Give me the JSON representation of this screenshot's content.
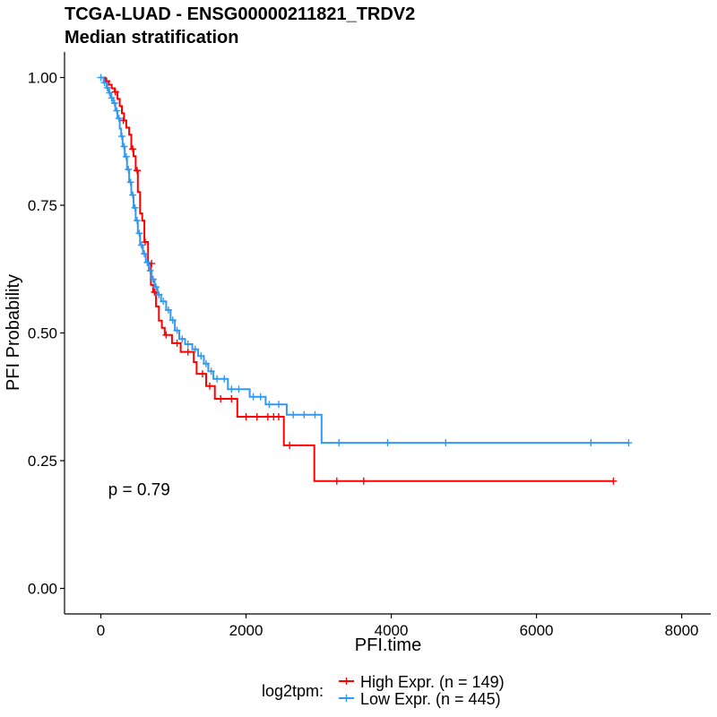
{
  "chart_data": {
    "type": "line",
    "title": "TCGA-LUAD - ENSG00000211821_TRDV2",
    "subtitle": "Median stratification",
    "xlabel": "PFI.time",
    "ylabel": "PFI Probability",
    "xlim": [
      -500,
      8400
    ],
    "ylim": [
      -0.05,
      1.05
    ],
    "x_ticks": [
      0,
      2000,
      4000,
      6000,
      8000
    ],
    "x_tick_labels": [
      "0",
      "2000",
      "4000",
      "6000",
      "8000"
    ],
    "y_ticks": [
      0,
      0.25,
      0.5,
      0.75,
      1.0
    ],
    "y_tick_labels": [
      "0.00",
      "0.25",
      "0.50",
      "0.75",
      "1.00"
    ],
    "grid": false,
    "annotation": {
      "text": "p = 0.79",
      "x": 100,
      "y": 0.195
    },
    "legend": {
      "placement": "bottom",
      "title": "log2tpm:",
      "entries": [
        "High Expr. (n = 149)",
        "Low Expr. (n = 445)"
      ]
    },
    "series": [
      {
        "name": "High Expr. (n = 149)",
        "color": "#ff0000",
        "steps": [
          [
            0,
            1.0
          ],
          [
            60,
            0.993
          ],
          [
            110,
            0.986
          ],
          [
            150,
            0.979
          ],
          [
            190,
            0.972
          ],
          [
            230,
            0.958
          ],
          [
            260,
            0.944
          ],
          [
            290,
            0.93
          ],
          [
            320,
            0.916
          ],
          [
            350,
            0.902
          ],
          [
            390,
            0.888
          ],
          [
            420,
            0.86
          ],
          [
            450,
            0.846
          ],
          [
            480,
            0.818
          ],
          [
            510,
            0.776
          ],
          [
            540,
            0.734
          ],
          [
            570,
            0.72
          ],
          [
            600,
            0.678
          ],
          [
            650,
            0.636
          ],
          [
            690,
            0.594
          ],
          [
            720,
            0.58
          ],
          [
            760,
            0.552
          ],
          [
            800,
            0.524
          ],
          [
            840,
            0.51
          ],
          [
            880,
            0.496
          ],
          [
            980,
            0.48
          ],
          [
            1100,
            0.463
          ],
          [
            1280,
            0.443
          ],
          [
            1320,
            0.42
          ],
          [
            1450,
            0.396
          ],
          [
            1570,
            0.371
          ],
          [
            1880,
            0.336
          ],
          [
            2520,
            0.28
          ],
          [
            2940,
            0.21
          ],
          [
            7060,
            0.21
          ]
        ],
        "censors": [
          [
            80,
            0.993
          ],
          [
            200,
            0.972
          ],
          [
            310,
            0.916
          ],
          [
            440,
            0.86
          ],
          [
            500,
            0.818
          ],
          [
            610,
            0.678
          ],
          [
            700,
            0.636
          ],
          [
            740,
            0.58
          ],
          [
            900,
            0.496
          ],
          [
            1050,
            0.48
          ],
          [
            1200,
            0.463
          ],
          [
            1400,
            0.42
          ],
          [
            1500,
            0.396
          ],
          [
            1650,
            0.371
          ],
          [
            1800,
            0.371
          ],
          [
            2000,
            0.336
          ],
          [
            2150,
            0.336
          ],
          [
            2300,
            0.336
          ],
          [
            2380,
            0.336
          ],
          [
            2450,
            0.336
          ],
          [
            2600,
            0.28
          ],
          [
            3250,
            0.21
          ],
          [
            3620,
            0.21
          ],
          [
            7060,
            0.21
          ]
        ]
      },
      {
        "name": "Low Expr. (n = 445)",
        "color": "#3399ee",
        "steps": [
          [
            0,
            1.0
          ],
          [
            40,
            0.99
          ],
          [
            80,
            0.98
          ],
          [
            110,
            0.97
          ],
          [
            140,
            0.96
          ],
          [
            170,
            0.95
          ],
          [
            200,
            0.935
          ],
          [
            230,
            0.92
          ],
          [
            260,
            0.9
          ],
          [
            280,
            0.885
          ],
          [
            300,
            0.865
          ],
          [
            330,
            0.845
          ],
          [
            360,
            0.82
          ],
          [
            390,
            0.795
          ],
          [
            420,
            0.77
          ],
          [
            450,
            0.745
          ],
          [
            480,
            0.72
          ],
          [
            510,
            0.695
          ],
          [
            540,
            0.672
          ],
          [
            580,
            0.655
          ],
          [
            620,
            0.638
          ],
          [
            660,
            0.622
          ],
          [
            700,
            0.605
          ],
          [
            740,
            0.59
          ],
          [
            780,
            0.575
          ],
          [
            830,
            0.562
          ],
          [
            900,
            0.545
          ],
          [
            960,
            0.525
          ],
          [
            1020,
            0.505
          ],
          [
            1080,
            0.488
          ],
          [
            1160,
            0.478
          ],
          [
            1260,
            0.468
          ],
          [
            1340,
            0.455
          ],
          [
            1420,
            0.44
          ],
          [
            1480,
            0.425
          ],
          [
            1550,
            0.41
          ],
          [
            1750,
            0.39
          ],
          [
            2050,
            0.375
          ],
          [
            2270,
            0.36
          ],
          [
            2560,
            0.34
          ],
          [
            3040,
            0.285
          ],
          [
            7270,
            0.285
          ]
        ],
        "censors": [
          [
            0,
            1.0
          ],
          [
            50,
            0.99
          ],
          [
            90,
            0.98
          ],
          [
            120,
            0.97
          ],
          [
            150,
            0.96
          ],
          [
            190,
            0.95
          ],
          [
            220,
            0.935
          ],
          [
            250,
            0.92
          ],
          [
            290,
            0.885
          ],
          [
            320,
            0.865
          ],
          [
            350,
            0.845
          ],
          [
            380,
            0.82
          ],
          [
            410,
            0.795
          ],
          [
            440,
            0.77
          ],
          [
            470,
            0.745
          ],
          [
            500,
            0.72
          ],
          [
            530,
            0.695
          ],
          [
            560,
            0.672
          ],
          [
            600,
            0.655
          ],
          [
            640,
            0.638
          ],
          [
            680,
            0.622
          ],
          [
            720,
            0.605
          ],
          [
            760,
            0.59
          ],
          [
            800,
            0.575
          ],
          [
            860,
            0.562
          ],
          [
            930,
            0.545
          ],
          [
            990,
            0.525
          ],
          [
            1050,
            0.505
          ],
          [
            1120,
            0.488
          ],
          [
            1200,
            0.478
          ],
          [
            1300,
            0.468
          ],
          [
            1380,
            0.455
          ],
          [
            1450,
            0.44
          ],
          [
            1520,
            0.425
          ],
          [
            1600,
            0.41
          ],
          [
            1700,
            0.41
          ],
          [
            1800,
            0.39
          ],
          [
            1900,
            0.39
          ],
          [
            2100,
            0.375
          ],
          [
            2200,
            0.375
          ],
          [
            2320,
            0.36
          ],
          [
            2450,
            0.36
          ],
          [
            2650,
            0.34
          ],
          [
            2800,
            0.34
          ],
          [
            2950,
            0.34
          ],
          [
            3280,
            0.285
          ],
          [
            3950,
            0.285
          ],
          [
            4750,
            0.285
          ],
          [
            6750,
            0.285
          ],
          [
            7270,
            0.285
          ]
        ]
      }
    ]
  }
}
